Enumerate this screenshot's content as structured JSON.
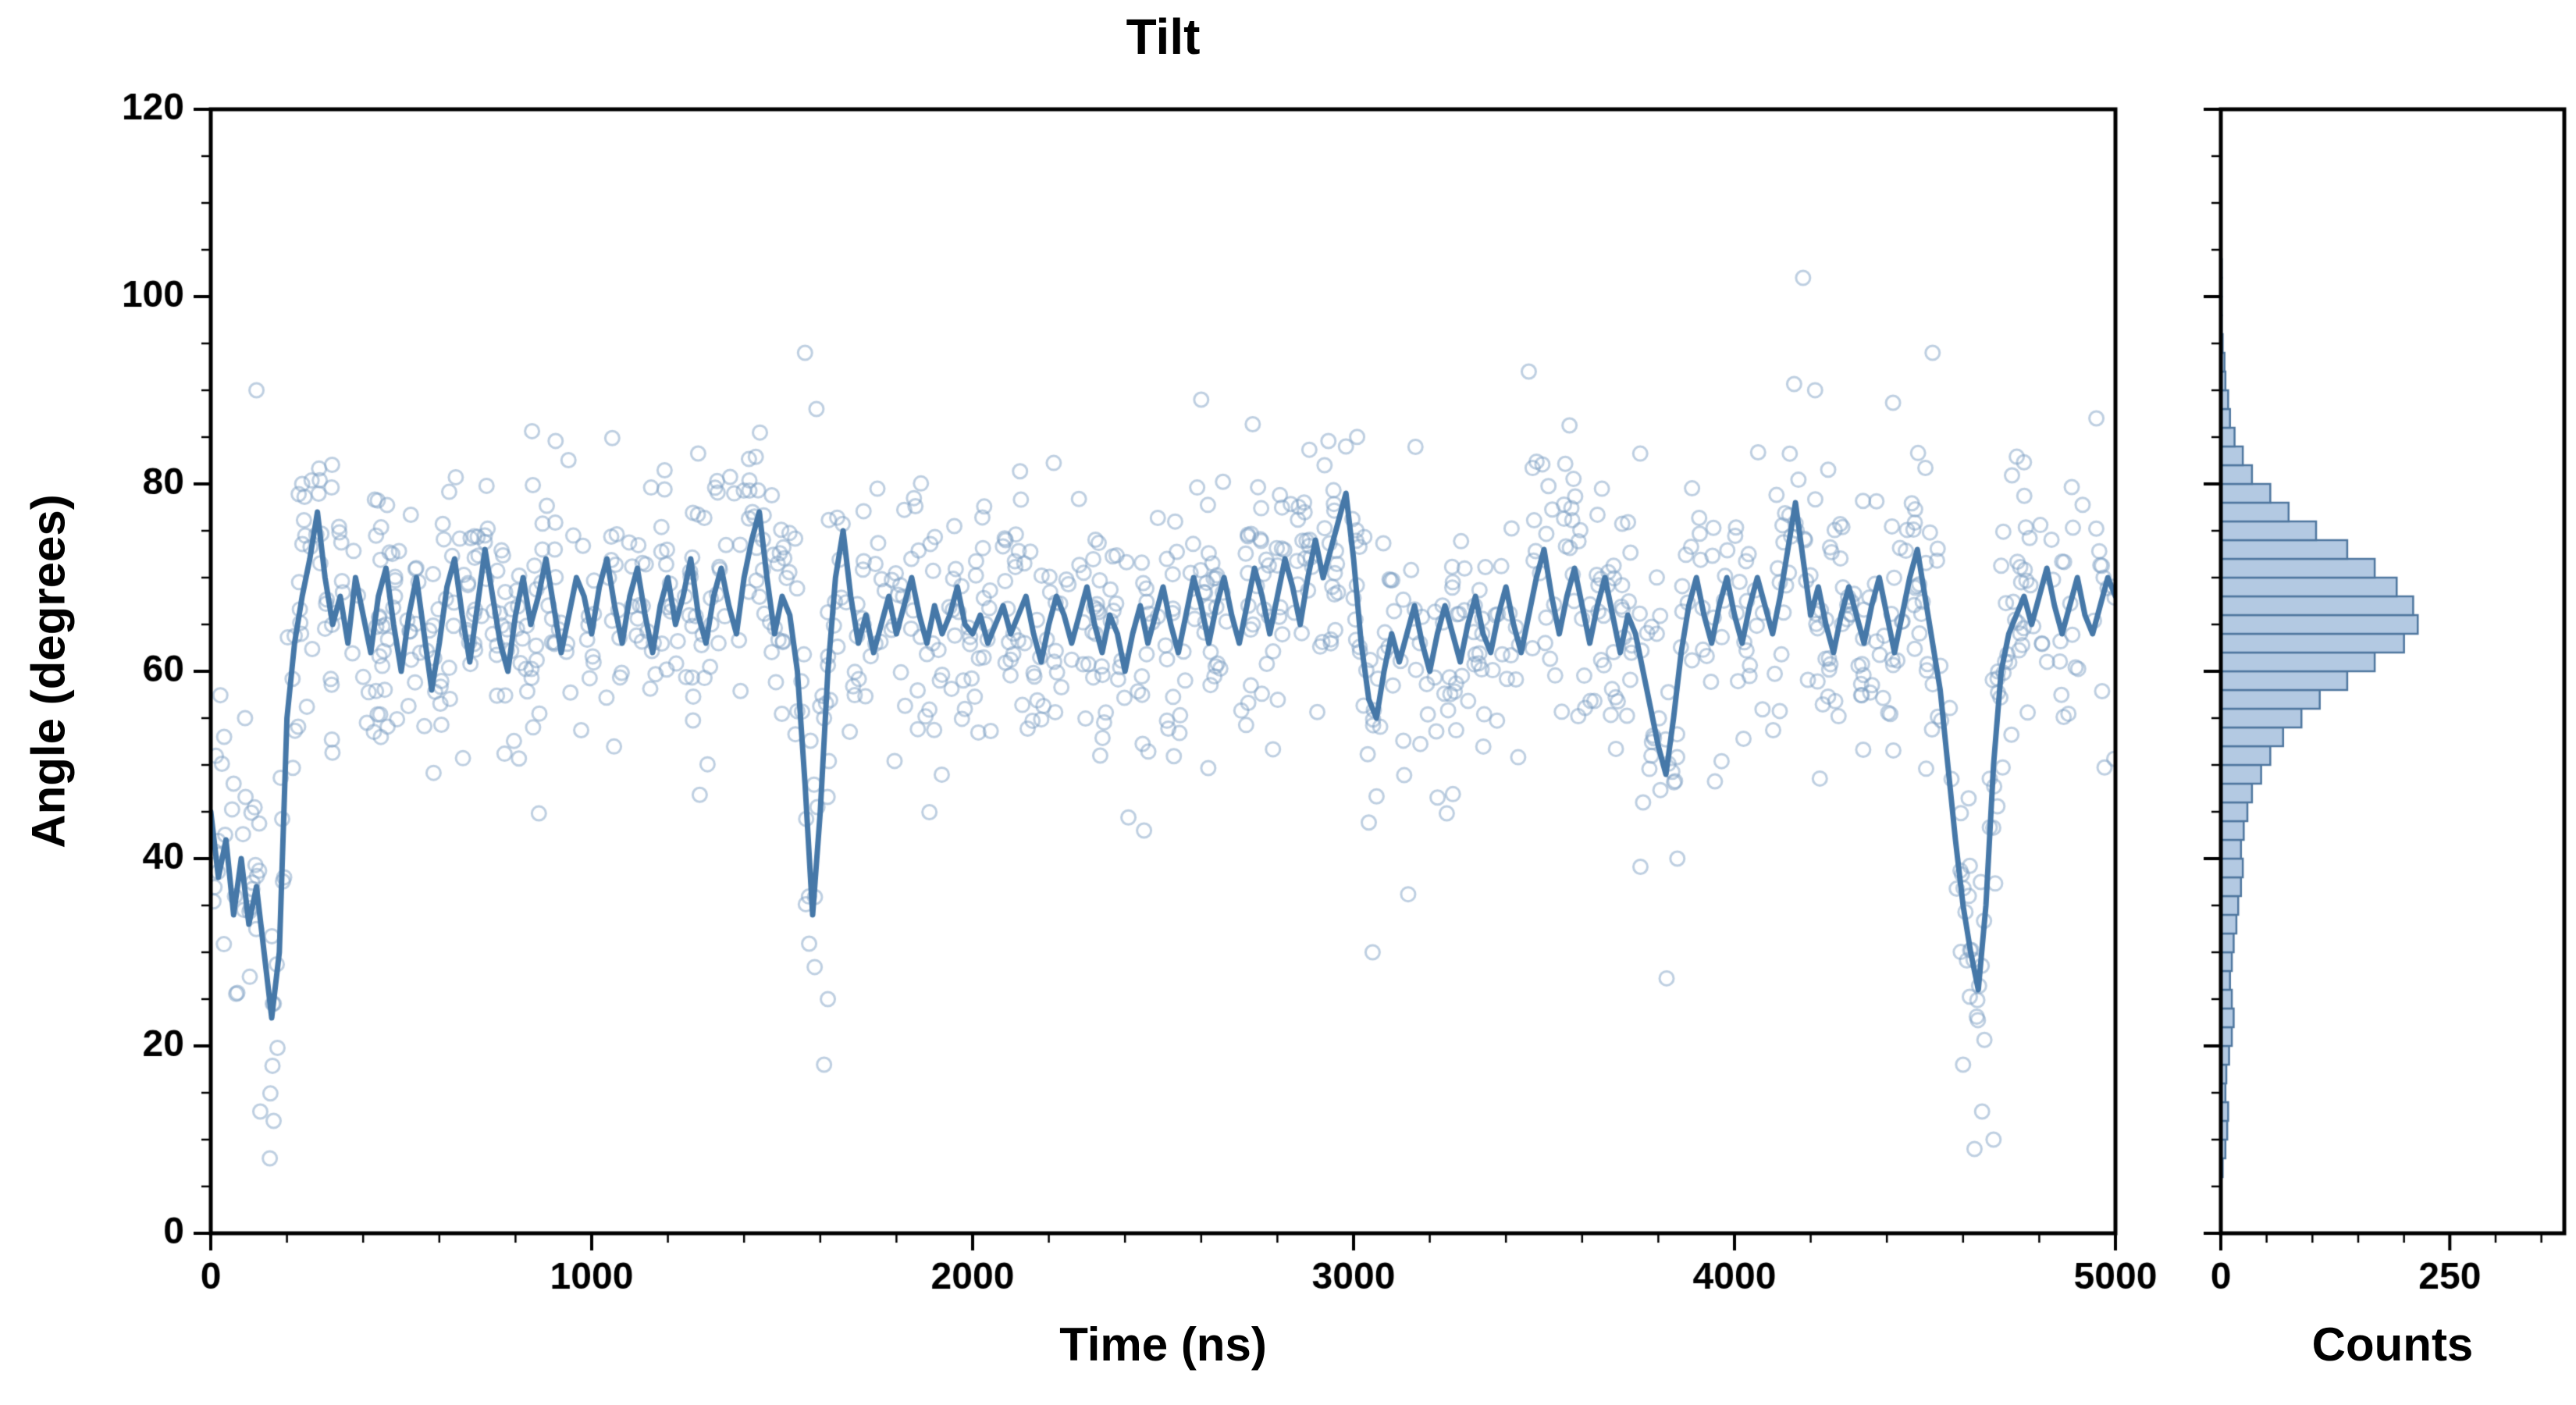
{
  "chart_data": {
    "type": "scatter",
    "title": "Tilt",
    "xlabel": "Time (ns)",
    "ylabel": "Angle (degrees)",
    "xlim": [
      0,
      5000
    ],
    "ylim": [
      0,
      120
    ],
    "xticks": [
      0,
      1000,
      2000,
      3000,
      4000,
      5000
    ],
    "yticks": [
      0,
      20,
      40,
      60,
      80,
      100,
      120
    ],
    "x_minor_step": 200,
    "y_minor_step": 5,
    "grid": false,
    "legend": "none",
    "mean_line": {
      "t0": 0,
      "dt": 20,
      "y": [
        45,
        38,
        42,
        34,
        40,
        33,
        37,
        30,
        23,
        30,
        55,
        63,
        68,
        72,
        77,
        70,
        65,
        68,
        63,
        70,
        66,
        62,
        68,
        71,
        65,
        60,
        66,
        70,
        64,
        58,
        63,
        69,
        72,
        66,
        61,
        67,
        73,
        68,
        63,
        60,
        66,
        70,
        65,
        68,
        72,
        67,
        62,
        66,
        70,
        68,
        64,
        69,
        72,
        67,
        63,
        68,
        71,
        66,
        62,
        67,
        70,
        65,
        68,
        72,
        66,
        63,
        68,
        71,
        67,
        64,
        70,
        74,
        77,
        70,
        64,
        68,
        66,
        60,
        48,
        34,
        45,
        60,
        70,
        75,
        68,
        63,
        66,
        62,
        65,
        68,
        64,
        67,
        70,
        66,
        63,
        67,
        64,
        66,
        69,
        65,
        64,
        66,
        63,
        65,
        67,
        64,
        66,
        68,
        64,
        61,
        65,
        68,
        66,
        63,
        66,
        69,
        65,
        62,
        66,
        64,
        60,
        64,
        67,
        63,
        66,
        69,
        65,
        62,
        66,
        70,
        67,
        63,
        67,
        70,
        66,
        63,
        67,
        71,
        68,
        64,
        68,
        72,
        69,
        65,
        70,
        74,
        70,
        73,
        76,
        79,
        72,
        63,
        57,
        55,
        60,
        64,
        61,
        64,
        67,
        63,
        60,
        64,
        67,
        64,
        61,
        65,
        68,
        64,
        62,
        66,
        69,
        65,
        62,
        66,
        70,
        73,
        68,
        64,
        68,
        71,
        67,
        63,
        67,
        70,
        66,
        62,
        66,
        64,
        60,
        56,
        52,
        49,
        55,
        62,
        67,
        70,
        66,
        63,
        67,
        70,
        66,
        63,
        67,
        70,
        67,
        64,
        68,
        73,
        78,
        72,
        66,
        69,
        65,
        62,
        66,
        69,
        66,
        63,
        67,
        70,
        66,
        62,
        66,
        70,
        73,
        68,
        63,
        58,
        50,
        42,
        35,
        30,
        26,
        35,
        50,
        60,
        64,
        66,
        68,
        65,
        68,
        71,
        67,
        64,
        67,
        70,
        66,
        64,
        67,
        70,
        68
      ]
    },
    "scatter_model": {
      "n": 1150,
      "sigma": 7.5,
      "seed": 11
    },
    "outliers": [
      [
        120,
        90
      ],
      [
        90,
        55
      ],
      [
        60,
        48
      ],
      [
        130,
        13
      ],
      [
        155,
        8
      ],
      [
        165,
        12
      ],
      [
        240,
        80
      ],
      [
        1560,
        94
      ],
      [
        1590,
        88
      ],
      [
        1610,
        18
      ],
      [
        1620,
        25
      ],
      [
        2450,
        43
      ],
      [
        2600,
        89
      ],
      [
        2980,
        84
      ],
      [
        3050,
        30
      ],
      [
        3460,
        92
      ],
      [
        3760,
        46
      ],
      [
        3850,
        40
      ],
      [
        4180,
        102
      ],
      [
        4520,
        94
      ],
      [
        4600,
        18
      ],
      [
        4630,
        9
      ],
      [
        4650,
        13
      ],
      [
        4680,
        10
      ],
      [
        4950,
        87
      ]
    ],
    "histogram": {
      "xlabel": "Counts",
      "xlim": [
        0,
        375
      ],
      "xticks": [
        0,
        250
      ],
      "x_minor_step": 50,
      "bin_start": 6,
      "bin_size": 2,
      "counts": [
        2,
        5,
        7,
        8,
        5,
        6,
        9,
        12,
        14,
        12,
        10,
        12,
        14,
        17,
        19,
        22,
        24,
        22,
        25,
        29,
        34,
        44,
        54,
        68,
        88,
        108,
        138,
        168,
        200,
        215,
        210,
        192,
        168,
        138,
        104,
        74,
        54,
        34,
        24,
        15,
        10,
        8,
        5,
        4,
        2,
        1,
        1,
        1,
        1
      ]
    },
    "colors": {
      "scatter": "#7da0c4",
      "line": "#4678a8",
      "hist_fill": "#b3c9e2",
      "hist_edge": "#4f779f",
      "axis": "#000000"
    }
  }
}
